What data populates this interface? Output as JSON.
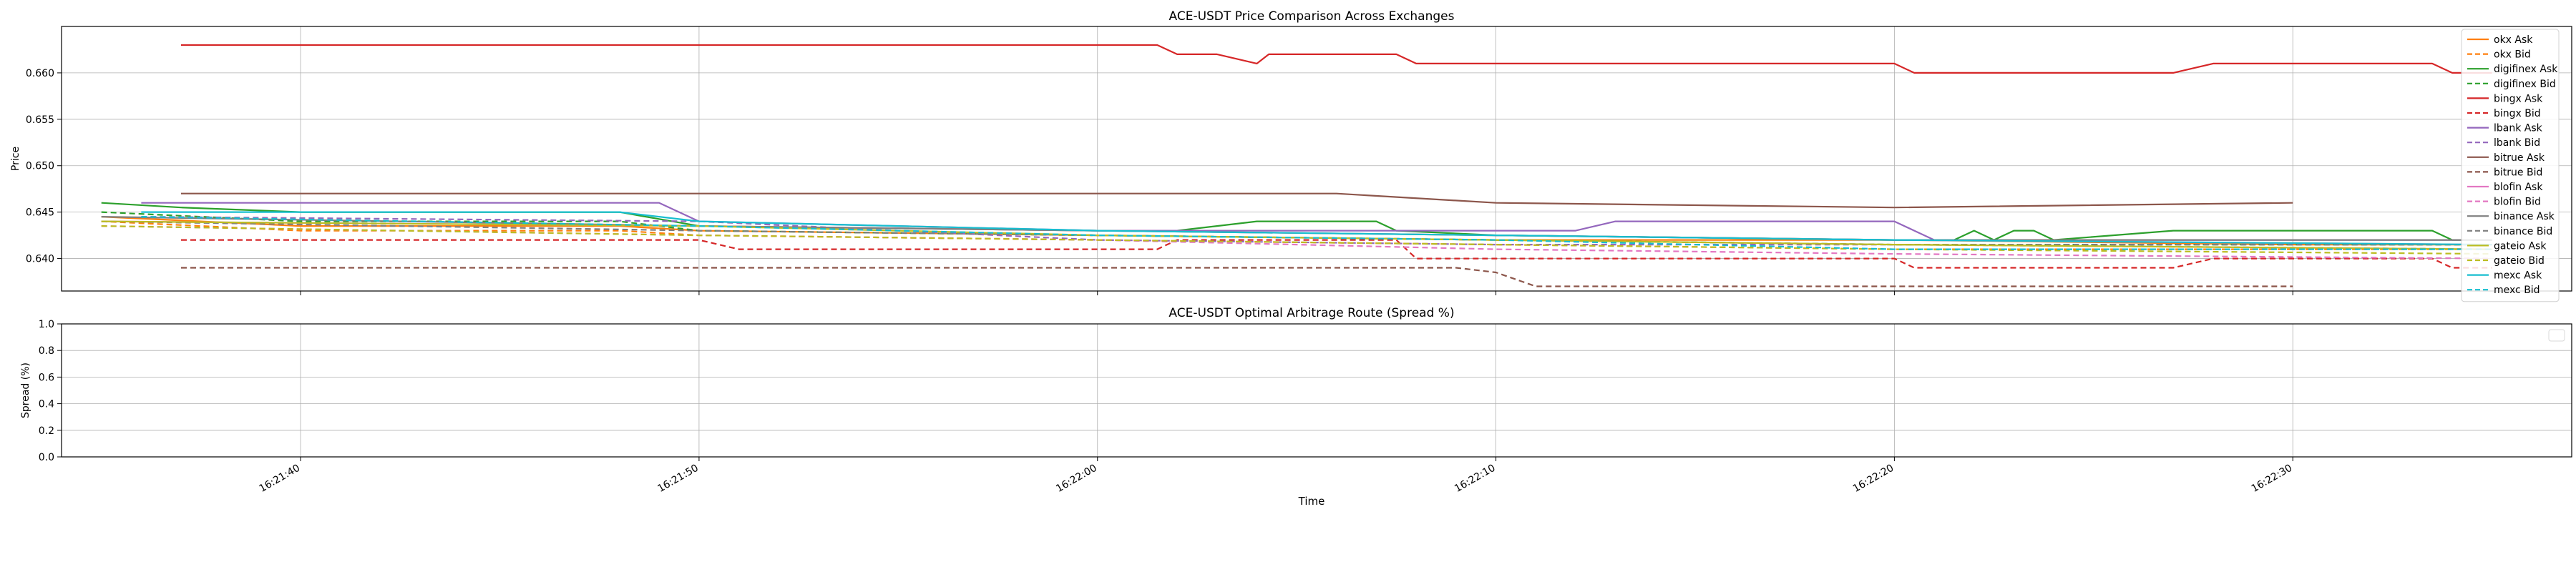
{
  "chart_data": [
    {
      "type": "line",
      "title": "ACE-USDT Price Comparison Across Exchanges",
      "xlabel": "",
      "ylabel": "Price",
      "ylim": [
        0.6365,
        0.665
      ],
      "xlim": [
        "16:21:34",
        "16:22:37"
      ],
      "yticks": [
        "0.640",
        "0.645",
        "0.650",
        "0.655",
        "0.660"
      ],
      "ytick_values": [
        0.64,
        0.645,
        0.65,
        0.655,
        0.66
      ],
      "grid": true,
      "legend_position": "upper right",
      "series": [
        {
          "name": "okx Ask",
          "color": "#ff7f0e",
          "dash": false,
          "points": [
            [
              "16:21:35",
              0.6445
            ],
            [
              "16:21:40",
              0.6435
            ],
            [
              "16:21:48",
              0.6435
            ],
            [
              "16:21:50",
              0.643
            ],
            [
              "16:22:00",
              0.6425
            ],
            [
              "16:22:10",
              0.642
            ],
            [
              "16:22:20",
              0.642
            ],
            [
              "16:22:30",
              0.6415
            ],
            [
              "16:22:35",
              0.6415
            ]
          ]
        },
        {
          "name": "okx Bid",
          "color": "#ff7f0e",
          "dash": true,
          "points": [
            [
              "16:21:35",
              0.644
            ],
            [
              "16:21:40",
              0.643
            ],
            [
              "16:21:48",
              0.643
            ],
            [
              "16:21:50",
              0.6425
            ],
            [
              "16:22:00",
              0.642
            ],
            [
              "16:22:10",
              0.6415
            ],
            [
              "16:22:20",
              0.641
            ],
            [
              "16:22:30",
              0.641
            ],
            [
              "16:22:35",
              0.641
            ]
          ]
        },
        {
          "name": "digifinex Ask",
          "color": "#2ca02c",
          "dash": false,
          "points": [
            [
              "16:21:35",
              0.646
            ],
            [
              "16:21:37",
              0.6455
            ],
            [
              "16:21:40",
              0.645
            ],
            [
              "16:21:48",
              0.645
            ],
            [
              "16:21:50",
              0.6435
            ],
            [
              "16:22:00",
              0.643
            ],
            [
              "16:22:02",
              0.643
            ],
            [
              "16:22:03",
              0.6435
            ],
            [
              "16:22:04",
              0.644
            ],
            [
              "16:22:07",
              0.644
            ],
            [
              "16:22:07.5",
              0.643
            ],
            [
              "16:22:10",
              0.6425
            ],
            [
              "16:22:20",
              0.642
            ],
            [
              "16:22:21.5",
              0.642
            ],
            [
              "16:22:22",
              0.643
            ],
            [
              "16:22:22.5",
              0.642
            ],
            [
              "16:22:23",
              0.643
            ],
            [
              "16:22:23.5",
              0.643
            ],
            [
              "16:22:24",
              0.642
            ],
            [
              "16:22:27",
              0.643
            ],
            [
              "16:22:33.5",
              0.643
            ],
            [
              "16:22:34",
              0.642
            ],
            [
              "16:22:35",
              0.642
            ]
          ]
        },
        {
          "name": "digifinex Bid",
          "color": "#2ca02c",
          "dash": true,
          "points": [
            [
              "16:21:35",
              0.645
            ],
            [
              "16:21:40",
              0.644
            ],
            [
              "16:21:48",
              0.644
            ],
            [
              "16:21:50",
              0.643
            ],
            [
              "16:22:00",
              0.6425
            ],
            [
              "16:22:10",
              0.642
            ],
            [
              "16:22:20",
              0.6415
            ],
            [
              "16:22:30",
              0.6415
            ],
            [
              "16:22:35",
              0.6415
            ]
          ]
        },
        {
          "name": "bingx Ask",
          "color": "#d62728",
          "dash": false,
          "points": [
            [
              "16:21:37",
              0.663
            ],
            [
              "16:22:01.5",
              0.663
            ],
            [
              "16:22:02",
              0.662
            ],
            [
              "16:22:03",
              0.662
            ],
            [
              "16:22:04",
              0.661
            ],
            [
              "16:22:04.3",
              0.662
            ],
            [
              "16:22:07.5",
              0.662
            ],
            [
              "16:22:08",
              0.661
            ],
            [
              "16:22:20",
              0.661
            ],
            [
              "16:22:20.5",
              0.66
            ],
            [
              "16:22:27",
              0.66
            ],
            [
              "16:22:28",
              0.661
            ],
            [
              "16:22:33.5",
              0.661
            ],
            [
              "16:22:34",
              0.66
            ],
            [
              "16:22:35",
              0.66
            ]
          ]
        },
        {
          "name": "bingx Bid",
          "color": "#d62728",
          "dash": true,
          "points": [
            [
              "16:21:37",
              0.642
            ],
            [
              "16:21:50",
              0.642
            ],
            [
              "16:21:51",
              0.641
            ],
            [
              "16:22:01.5",
              0.641
            ],
            [
              "16:22:02",
              0.642
            ],
            [
              "16:22:07.5",
              0.642
            ],
            [
              "16:22:08",
              0.64
            ],
            [
              "16:22:20",
              0.64
            ],
            [
              "16:22:20.5",
              0.639
            ],
            [
              "16:22:27",
              0.639
            ],
            [
              "16:22:28",
              0.64
            ],
            [
              "16:22:33.5",
              0.64
            ],
            [
              "16:22:34",
              0.639
            ],
            [
              "16:22:35",
              0.639
            ]
          ]
        },
        {
          "name": "lbank Ask",
          "color": "#9467bd",
          "dash": false,
          "points": [
            [
              "16:21:36",
              0.646
            ],
            [
              "16:21:49",
              0.646
            ],
            [
              "16:21:50",
              0.644
            ],
            [
              "16:22:00",
              0.643
            ],
            [
              "16:22:12",
              0.643
            ],
            [
              "16:22:13",
              0.644
            ],
            [
              "16:22:20",
              0.644
            ],
            [
              "16:22:20.5",
              0.643
            ],
            [
              "16:22:21",
              0.642
            ],
            [
              "16:22:35",
              0.642
            ]
          ]
        },
        {
          "name": "lbank Bid",
          "color": "#9467bd",
          "dash": true,
          "points": [
            [
              "16:21:36",
              0.6445
            ],
            [
              "16:21:50",
              0.644
            ],
            [
              "16:22:00",
              0.642
            ],
            [
              "16:22:10",
              0.6415
            ],
            [
              "16:22:20",
              0.6415
            ],
            [
              "16:22:35",
              0.641
            ]
          ]
        },
        {
          "name": "bitrue Ask",
          "color": "#8c564b",
          "dash": false,
          "points": [
            [
              "16:21:37",
              0.647
            ],
            [
              "16:22:06",
              0.647
            ],
            [
              "16:22:10",
              0.646
            ],
            [
              "16:22:20",
              0.6455
            ],
            [
              "16:22:30",
              0.646
            ]
          ]
        },
        {
          "name": "bitrue Bid",
          "color": "#8c564b",
          "dash": true,
          "points": [
            [
              "16:21:37",
              0.639
            ],
            [
              "16:22:09",
              0.639
            ],
            [
              "16:22:10",
              0.6385
            ],
            [
              "16:22:11",
              0.637
            ],
            [
              "16:22:30",
              0.637
            ]
          ]
        },
        {
          "name": "blofin Ask",
          "color": "#e377c2",
          "dash": false,
          "points": [
            [
              "16:21:35",
              0.644
            ],
            [
              "16:21:50",
              0.6435
            ],
            [
              "16:22:00",
              0.643
            ],
            [
              "16:22:10",
              0.6425
            ],
            [
              "16:22:20",
              0.642
            ],
            [
              "16:22:35",
              0.6415
            ]
          ]
        },
        {
          "name": "blofin Bid",
          "color": "#e377c2",
          "dash": true,
          "points": [
            [
              "16:21:35",
              0.6435
            ],
            [
              "16:21:50",
              0.6425
            ],
            [
              "16:22:00",
              0.642
            ],
            [
              "16:22:10",
              0.641
            ],
            [
              "16:22:20",
              0.6405
            ],
            [
              "16:22:35",
              0.64
            ]
          ]
        },
        {
          "name": "binance Ask",
          "color": "#7f7f7f",
          "dash": false,
          "points": [
            [
              "16:21:35",
              0.6445
            ],
            [
              "16:21:50",
              0.6435
            ],
            [
              "16:22:00",
              0.643
            ],
            [
              "16:22:10",
              0.6425
            ],
            [
              "16:22:20",
              0.642
            ],
            [
              "16:22:35",
              0.642
            ]
          ]
        },
        {
          "name": "binance Bid",
          "color": "#7f7f7f",
          "dash": true,
          "points": [
            [
              "16:21:35",
              0.644
            ],
            [
              "16:21:50",
              0.643
            ],
            [
              "16:22:00",
              0.6425
            ],
            [
              "16:22:10",
              0.642
            ],
            [
              "16:22:20",
              0.6415
            ],
            [
              "16:22:35",
              0.6415
            ]
          ]
        },
        {
          "name": "gateio Ask",
          "color": "#bcbd22",
          "dash": false,
          "points": [
            [
              "16:21:35",
              0.644
            ],
            [
              "16:21:50",
              0.6435
            ],
            [
              "16:22:00",
              0.6425
            ],
            [
              "16:22:10",
              0.642
            ],
            [
              "16:22:20",
              0.6415
            ],
            [
              "16:22:35",
              0.641
            ]
          ]
        },
        {
          "name": "gateio Bid",
          "color": "#bcbd22",
          "dash": true,
          "points": [
            [
              "16:21:35",
              0.6435
            ],
            [
              "16:21:50",
              0.6425
            ],
            [
              "16:22:00",
              0.642
            ],
            [
              "16:22:10",
              0.6415
            ],
            [
              "16:22:20",
              0.641
            ],
            [
              "16:22:35",
              0.6405
            ]
          ]
        },
        {
          "name": "mexc Ask",
          "color": "#17becf",
          "dash": false,
          "points": [
            [
              "16:21:36",
              0.645
            ],
            [
              "16:21:48",
              0.645
            ],
            [
              "16:21:50",
              0.644
            ],
            [
              "16:21:55",
              0.6435
            ],
            [
              "16:22:00",
              0.643
            ],
            [
              "16:22:10",
              0.6425
            ],
            [
              "16:22:20",
              0.642
            ],
            [
              "16:22:35",
              0.6415
            ]
          ]
        },
        {
          "name": "mexc Bid",
          "color": "#17becf",
          "dash": true,
          "points": [
            [
              "16:21:36",
              0.6445
            ],
            [
              "16:21:50",
              0.6435
            ],
            [
              "16:22:00",
              0.6425
            ],
            [
              "16:22:10",
              0.642
            ],
            [
              "16:22:20",
              0.641
            ],
            [
              "16:22:35",
              0.641
            ]
          ]
        }
      ]
    },
    {
      "type": "line",
      "title": "ACE-USDT Optimal Arbitrage Route (Spread %)",
      "xlabel": "Time",
      "ylabel": "Spread (%)",
      "ylim": [
        0.0,
        1.0
      ],
      "yticks": [
        "0.0",
        "0.2",
        "0.4",
        "0.6",
        "0.8",
        "1.0"
      ],
      "ytick_values": [
        0.0,
        0.2,
        0.4,
        0.6,
        0.8,
        1.0
      ],
      "xticks": [
        "16:21:40",
        "16:21:50",
        "16:22:00",
        "16:22:10",
        "16:22:20",
        "16:22:30"
      ],
      "grid": true,
      "legend_position": "upper right",
      "series": []
    }
  ]
}
